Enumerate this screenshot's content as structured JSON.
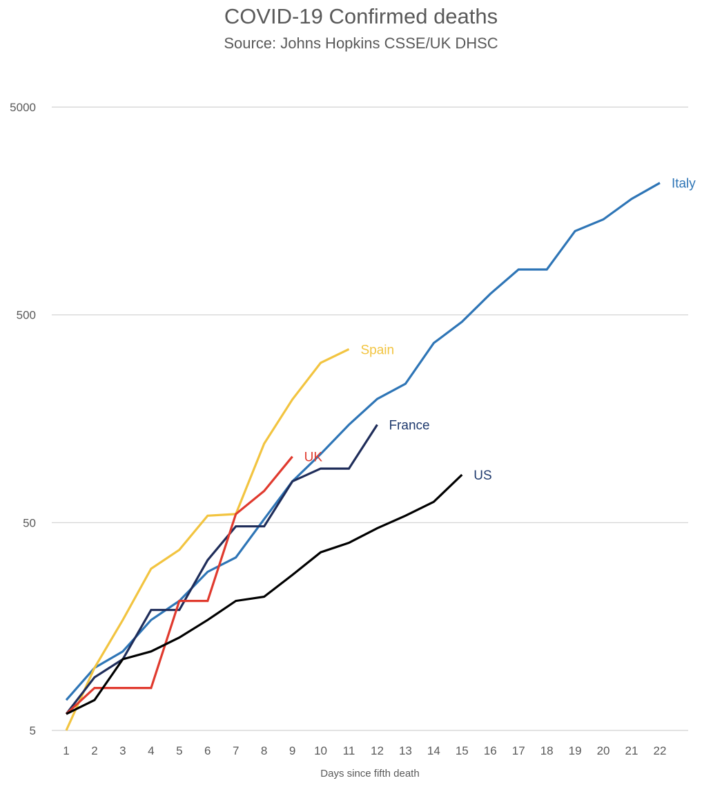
{
  "chart_data": {
    "type": "line",
    "title": "COVID-19 Confirmed deaths",
    "subtitle": "Source: Johns Hopkins CSSE/UK DHSC",
    "xlabel": "Days since fifth death",
    "ylabel": "",
    "y_scale": "log",
    "ylim": [
      5,
      5000
    ],
    "y_ticks": [
      "5000",
      "500",
      "50",
      "5"
    ],
    "x_ticks": [
      "1",
      "2",
      "3",
      "4",
      "5",
      "6",
      "7",
      "8",
      "9",
      "10",
      "11",
      "12",
      "13",
      "14",
      "15",
      "16",
      "17",
      "18",
      "19",
      "20",
      "21",
      "22"
    ],
    "grid": "horizontal",
    "legend": "direct labels at line ends",
    "series": [
      {
        "name": "Italy",
        "color": "#2E75B6",
        "x": [
          1,
          2,
          3,
          4,
          5,
          6,
          7,
          8,
          9,
          10,
          11,
          12,
          13,
          14,
          15,
          16,
          17,
          18,
          19,
          20,
          21,
          22
        ],
        "values": [
          7,
          10,
          12,
          17,
          21,
          29,
          34,
          52,
          79,
          107,
          148,
          197,
          233,
          366,
          463,
          631,
          827,
          827,
          1266,
          1441,
          1809,
          2158
        ]
      },
      {
        "name": "Spain",
        "color": "#F2C440",
        "x": [
          1,
          2,
          3,
          4,
          5,
          6,
          7,
          8,
          9,
          10,
          11
        ],
        "values": [
          5,
          10,
          17,
          30,
          37,
          54,
          55,
          120,
          196,
          294,
          342
        ]
      },
      {
        "name": "France",
        "color": "#1F2D5A",
        "x": [
          1,
          2,
          3,
          4,
          5,
          6,
          7,
          8,
          9,
          10,
          11,
          12
        ],
        "values": [
          6,
          9,
          11,
          19,
          19,
          33,
          48,
          48,
          79,
          91,
          91,
          148
        ]
      },
      {
        "name": "UK",
        "color": "#E03A2E",
        "x": [
          1,
          2,
          3,
          4,
          5,
          6,
          7,
          8,
          9
        ],
        "values": [
          6,
          8,
          8,
          8,
          21,
          21,
          55,
          71,
          104
        ]
      },
      {
        "name": "US",
        "color": "#000000",
        "x": [
          1,
          2,
          3,
          4,
          5,
          6,
          7,
          8,
          9,
          10,
          11,
          12,
          13,
          14,
          15
        ],
        "values": [
          6,
          7,
          11,
          12,
          14,
          17,
          21,
          22,
          28,
          36,
          40,
          47,
          54,
          63,
          85
        ]
      }
    ]
  },
  "label_colors": {
    "Italy": "#2E75B6",
    "Spain": "#F2C440",
    "France": "#1F3A6E",
    "UK": "#E03A2E",
    "US": "#1F3A6E"
  }
}
